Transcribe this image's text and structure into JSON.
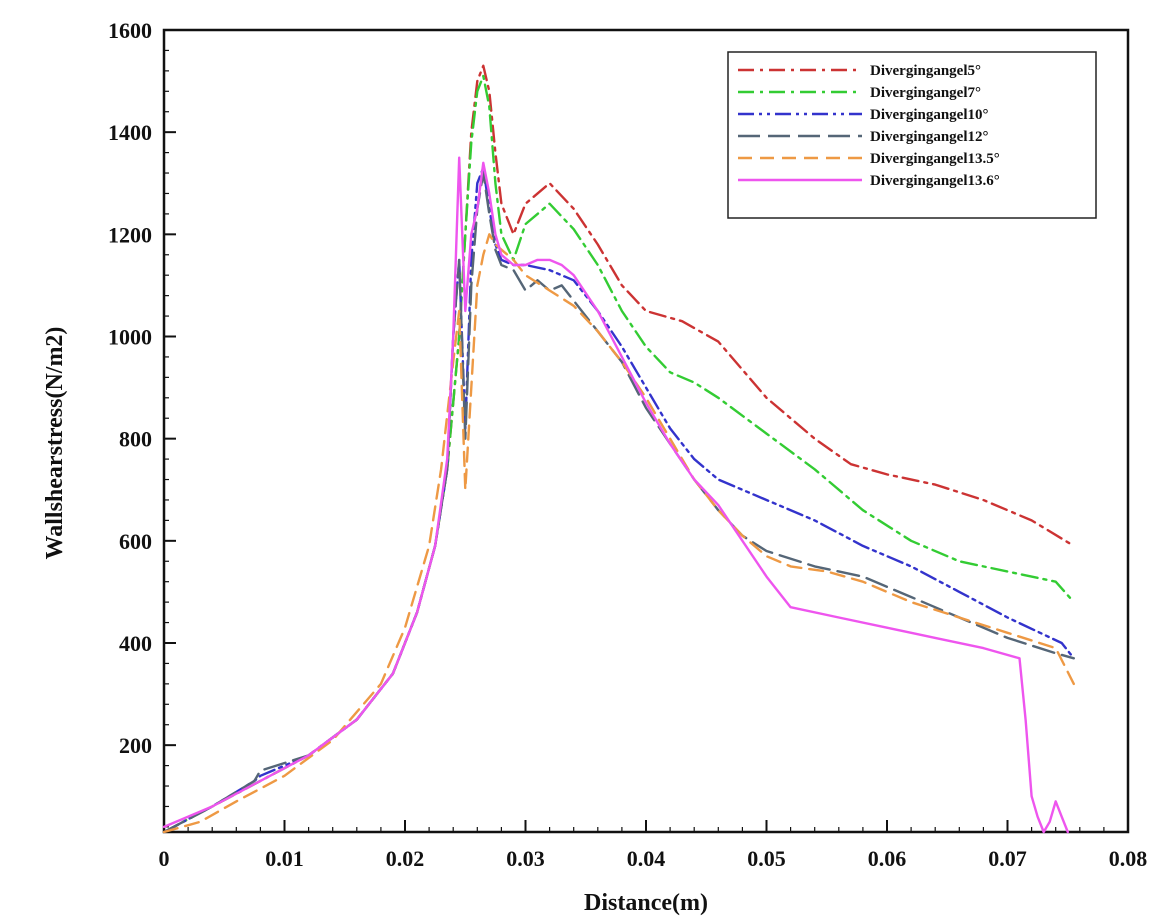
{
  "chart_data": {
    "type": "line",
    "xlabel": "Distance(m)",
    "ylabel": "Wallshearstress(N/m2)",
    "xlim": [
      0,
      0.08
    ],
    "ylim": [
      30,
      1600
    ],
    "xticks": [
      0,
      0.01,
      0.02,
      0.03,
      0.04,
      0.05,
      0.06,
      0.07,
      0.08
    ],
    "xtick_labels": [
      "0",
      "0.01",
      "0.02",
      "0.03",
      "0.04",
      "0.05",
      "0.06",
      "0.07",
      "0.08"
    ],
    "yticks": [
      200,
      400,
      600,
      800,
      1000,
      1200,
      1400,
      1600
    ],
    "ytick_labels": [
      "200",
      "400",
      "600",
      "800",
      "1000",
      "1200",
      "1400",
      "1600"
    ],
    "grid": false,
    "legend_position": "top-right",
    "series": [
      {
        "name": "Divergingangel5°",
        "color": "#cc3333",
        "dash": "dashdot",
        "x": [
          0.0,
          0.004,
          0.008,
          0.012,
          0.016,
          0.019,
          0.021,
          0.0225,
          0.0235,
          0.0245,
          0.025,
          0.0255,
          0.026,
          0.0265,
          0.027,
          0.0275,
          0.028,
          0.029,
          0.03,
          0.032,
          0.034,
          0.036,
          0.038,
          0.04,
          0.043,
          0.046,
          0.05,
          0.054,
          0.057,
          0.06,
          0.064,
          0.068,
          0.072,
          0.0755
        ],
        "y": [
          30,
          80,
          130,
          180,
          250,
          340,
          460,
          590,
          740,
          1000,
          1200,
          1400,
          1500,
          1530,
          1480,
          1360,
          1260,
          1200,
          1260,
          1300,
          1250,
          1180,
          1100,
          1050,
          1030,
          990,
          880,
          800,
          750,
          730,
          710,
          680,
          640,
          590
        ]
      },
      {
        "name": "Divergingangel7°",
        "color": "#33cc33",
        "dash": "dashdot",
        "x": [
          0.0,
          0.004,
          0.008,
          0.012,
          0.016,
          0.019,
          0.021,
          0.0225,
          0.0235,
          0.0245,
          0.025,
          0.0255,
          0.026,
          0.0265,
          0.027,
          0.0275,
          0.028,
          0.029,
          0.03,
          0.032,
          0.034,
          0.036,
          0.038,
          0.04,
          0.042,
          0.044,
          0.046,
          0.05,
          0.054,
          0.058,
          0.062,
          0.066,
          0.07,
          0.074,
          0.0755
        ],
        "y": [
          30,
          80,
          130,
          180,
          250,
          340,
          460,
          590,
          740,
          1000,
          1200,
          1380,
          1480,
          1510,
          1450,
          1300,
          1200,
          1150,
          1220,
          1260,
          1210,
          1140,
          1050,
          980,
          930,
          910,
          880,
          810,
          740,
          660,
          600,
          560,
          540,
          520,
          480
        ]
      },
      {
        "name": "Divergingangel10°",
        "color": "#3333cc",
        "dash": "dashdotdot",
        "x": [
          0.0,
          0.004,
          0.0075,
          0.008,
          0.012,
          0.016,
          0.019,
          0.021,
          0.0225,
          0.0235,
          0.024,
          0.0245,
          0.025,
          0.0255,
          0.026,
          0.0265,
          0.027,
          0.0275,
          0.028,
          0.029,
          0.03,
          0.032,
          0.034,
          0.036,
          0.038,
          0.04,
          0.042,
          0.044,
          0.046,
          0.05,
          0.054,
          0.058,
          0.062,
          0.066,
          0.07,
          0.0745,
          0.0755
        ],
        "y": [
          30,
          80,
          130,
          140,
          180,
          250,
          340,
          460,
          590,
          740,
          1000,
          1150,
          820,
          1150,
          1300,
          1330,
          1250,
          1180,
          1150,
          1140,
          1140,
          1130,
          1110,
          1050,
          980,
          900,
          820,
          760,
          720,
          680,
          640,
          590,
          550,
          500,
          450,
          400,
          370
        ]
      },
      {
        "name": "Divergingangel12°",
        "color": "#556677",
        "dash": "longdash",
        "x": [
          0.0,
          0.004,
          0.0075,
          0.008,
          0.012,
          0.016,
          0.019,
          0.021,
          0.0225,
          0.0235,
          0.024,
          0.0245,
          0.025,
          0.0255,
          0.026,
          0.0265,
          0.027,
          0.0275,
          0.028,
          0.029,
          0.03,
          0.031,
          0.032,
          0.033,
          0.034,
          0.036,
          0.038,
          0.04,
          0.042,
          0.044,
          0.046,
          0.048,
          0.05,
          0.054,
          0.058,
          0.062,
          0.066,
          0.07,
          0.074,
          0.0755
        ],
        "y": [
          30,
          80,
          130,
          150,
          180,
          250,
          340,
          460,
          590,
          740,
          1000,
          1150,
          800,
          1100,
          1250,
          1320,
          1240,
          1170,
          1140,
          1130,
          1090,
          1110,
          1090,
          1100,
          1070,
          1010,
          950,
          860,
          790,
          720,
          660,
          610,
          580,
          550,
          530,
          490,
          450,
          410,
          380,
          370
        ]
      },
      {
        "name": "Divergingangel13.5°",
        "color": "#ee9944",
        "dash": "dash",
        "x": [
          0.0,
          0.003,
          0.006,
          0.01,
          0.014,
          0.018,
          0.02,
          0.022,
          0.023,
          0.024,
          0.0245,
          0.025,
          0.0255,
          0.026,
          0.0265,
          0.027,
          0.0275,
          0.028,
          0.029,
          0.03,
          0.032,
          0.034,
          0.036,
          0.038,
          0.04,
          0.042,
          0.044,
          0.046,
          0.048,
          0.05,
          0.052,
          0.055,
          0.058,
          0.062,
          0.066,
          0.07,
          0.074,
          0.0755
        ],
        "y": [
          30,
          50,
          90,
          140,
          210,
          320,
          430,
          590,
          740,
          950,
          1050,
          700,
          900,
          1100,
          1160,
          1200,
          1180,
          1170,
          1150,
          1120,
          1090,
          1060,
          1010,
          950,
          880,
          800,
          720,
          660,
          610,
          570,
          550,
          540,
          520,
          480,
          450,
          420,
          390,
          320
        ]
      },
      {
        "name": "Divergingangel13.6°",
        "color": "#ee55ee",
        "dash": "solid",
        "x": [
          0.0,
          0.004,
          0.008,
          0.012,
          0.016,
          0.019,
          0.021,
          0.0225,
          0.0235,
          0.024,
          0.0245,
          0.025,
          0.0255,
          0.026,
          0.0265,
          0.027,
          0.0275,
          0.028,
          0.029,
          0.03,
          0.031,
          0.032,
          0.033,
          0.034,
          0.036,
          0.038,
          0.04,
          0.042,
          0.044,
          0.046,
          0.048,
          0.05,
          0.052,
          0.056,
          0.06,
          0.064,
          0.068,
          0.071,
          0.0715,
          0.072,
          0.0725,
          0.073,
          0.0735,
          0.074,
          0.0745,
          0.075
        ],
        "y": [
          40,
          80,
          130,
          180,
          250,
          340,
          460,
          590,
          760,
          1000,
          1350,
          1050,
          1200,
          1250,
          1340,
          1280,
          1200,
          1160,
          1140,
          1140,
          1150,
          1150,
          1140,
          1120,
          1050,
          960,
          870,
          790,
          720,
          670,
          600,
          530,
          470,
          450,
          430,
          410,
          390,
          370,
          250,
          100,
          60,
          20,
          50,
          90,
          60,
          20
        ]
      }
    ]
  }
}
